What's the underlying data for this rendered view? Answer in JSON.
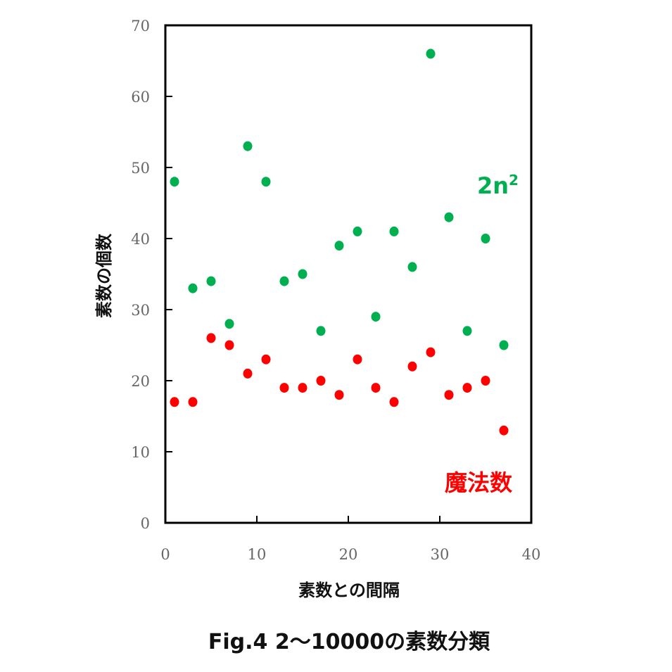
{
  "chart_data": {
    "type": "scatter",
    "title": "Fig.4  2～10000の素数分類",
    "xlabel": "素数との間隔",
    "ylabel": "素数の個数",
    "xlim": [
      0,
      40
    ],
    "ylim": [
      0,
      70
    ],
    "xticks": [
      0,
      10,
      20,
      30,
      40
    ],
    "yticks": [
      0,
      10,
      20,
      30,
      40,
      50,
      60,
      70
    ],
    "grid": false,
    "legend": "none",
    "series": [
      {
        "name": "2n²",
        "color": "#00b050",
        "label_base": "2n",
        "label_sup": "2",
        "x": [
          1,
          3,
          5,
          7,
          9,
          11,
          13,
          15,
          17,
          19,
          21,
          23,
          25,
          27,
          29,
          31,
          33,
          35,
          37
        ],
        "y": [
          48,
          33,
          34,
          28,
          53,
          48,
          34,
          35,
          27,
          39,
          41,
          29,
          41,
          36,
          66,
          43,
          27,
          40,
          25
        ]
      },
      {
        "name": "魔法数",
        "color": "#ff0000",
        "label_base": "魔法数",
        "label_sup": "",
        "x": [
          1,
          3,
          5,
          7,
          9,
          11,
          13,
          15,
          17,
          19,
          21,
          23,
          25,
          27,
          29,
          31,
          33,
          35,
          37
        ],
        "y": [
          17,
          17,
          26,
          25,
          21,
          23,
          19,
          19,
          20,
          18,
          23,
          19,
          17,
          22,
          24,
          18,
          19,
          20,
          13
        ]
      }
    ]
  }
}
